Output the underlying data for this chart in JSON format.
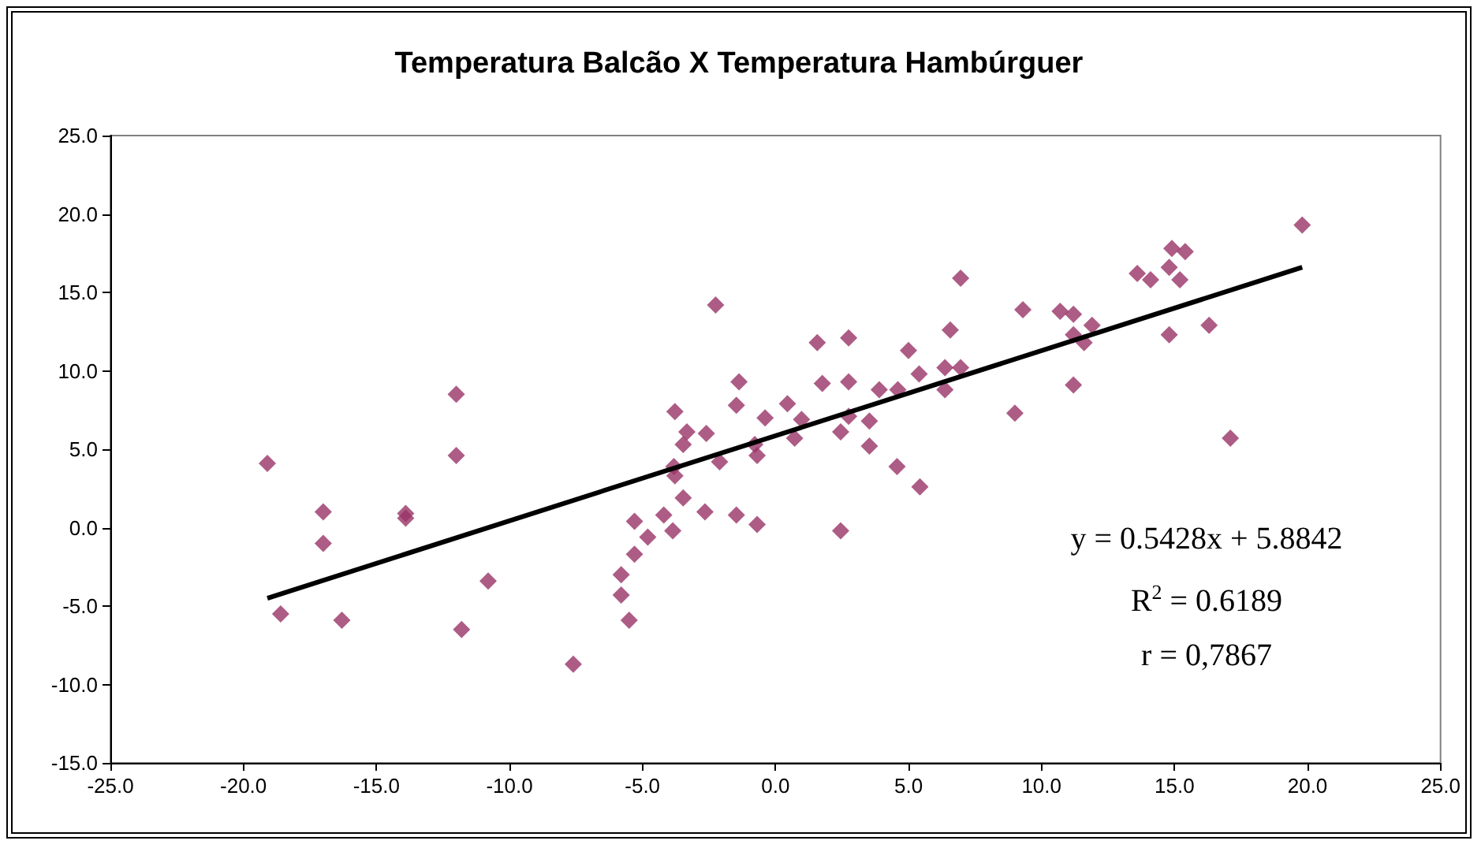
{
  "chart_data": {
    "type": "scatter",
    "title": "Temperatura Balcão X Temperatura Hambúrguer",
    "series": [
      {
        "color": "#993366",
        "marker": "diamond",
        "x": [
          -19.1,
          -18.6,
          -17.0,
          -17.0,
          -16.3,
          -13.9,
          -13.9,
          -12.0,
          -12.0,
          -11.8,
          -10.8,
          -7.6,
          -2.25,
          6.96,
          6.57,
          5.0,
          5.4,
          6.37,
          6.96,
          6.37,
          4.6,
          3.9,
          1.57,
          2.75,
          1.76,
          2.75,
          2.75,
          2.45,
          3.53,
          3.53,
          4.57,
          5.43,
          2.45,
          0.98,
          0.45,
          0.72,
          -0.39,
          -1.37,
          -1.47,
          -0.78,
          -0.69,
          -2.1,
          -2.6,
          -3.33,
          -3.47,
          -3.78,
          -3.82,
          -3.78,
          -3.47,
          -2.65,
          -1.47,
          -0.69,
          -4.2,
          -3.86,
          -4.8,
          -5.3,
          -5.3,
          -5.8,
          -5.8,
          -5.5,
          19.8,
          15.4,
          14.9,
          14.8,
          15.2,
          13.6,
          14.1,
          14.8,
          16.3,
          17.1,
          10.7,
          11.2,
          11.2,
          11.6,
          11.9,
          11.2,
          9.3,
          9.0
        ],
        "values": [
          4.1,
          -5.5,
          1.0,
          -1.0,
          -5.9,
          0.9,
          0.6,
          8.5,
          4.6,
          -6.5,
          -3.4,
          -8.7,
          14.2,
          15.9,
          12.6,
          11.3,
          9.8,
          10.2,
          10.2,
          8.8,
          8.8,
          8.8,
          11.8,
          12.1,
          9.2,
          9.3,
          7.1,
          6.1,
          6.8,
          5.2,
          3.9,
          2.6,
          -0.2,
          6.9,
          7.9,
          5.7,
          7.0,
          9.3,
          7.8,
          5.3,
          4.6,
          4.2,
          6.0,
          6.1,
          5.3,
          7.4,
          3.9,
          3.3,
          1.9,
          1.0,
          0.8,
          0.2,
          0.8,
          -0.2,
          -0.6,
          0.4,
          -1.7,
          -3.0,
          -4.3,
          -5.9,
          19.3,
          17.6,
          17.8,
          16.6,
          15.8,
          16.2,
          15.8,
          12.3,
          12.9,
          5.7,
          13.8,
          13.6,
          12.3,
          11.8,
          12.9,
          9.1,
          13.9,
          7.3
        ]
      },
      {
        "type": "line",
        "color": "#000000",
        "marker": "none",
        "line_style": "solid",
        "x": [
          -19.1,
          19.8
        ],
        "values": [
          -4.5,
          16.6
        ]
      }
    ],
    "xlim": [
      -25,
      25
    ],
    "xticks": [
      {
        "value": -25,
        "label": "-25.0"
      },
      {
        "value": -20,
        "label": "-20.0"
      },
      {
        "value": -15,
        "label": "-15.0"
      },
      {
        "value": -10,
        "label": "-10.0"
      },
      {
        "value": -5,
        "label": "-5.0"
      },
      {
        "value": 0,
        "label": "0.0"
      },
      {
        "value": 5,
        "label": "5.0"
      },
      {
        "value": 10,
        "label": "10.0"
      },
      {
        "value": 15,
        "label": "15.0"
      },
      {
        "value": 20,
        "label": "20.0"
      },
      {
        "value": 25,
        "label": "25.0"
      }
    ],
    "ylim": [
      -15,
      25
    ],
    "yticks": [
      {
        "value": -15,
        "label": "-15.0"
      },
      {
        "value": -10,
        "label": "-10.0"
      },
      {
        "value": -5,
        "label": "-5.0"
      },
      {
        "value": 0,
        "label": "0.0"
      },
      {
        "value": 5,
        "label": "5.0"
      },
      {
        "value": 10,
        "label": "10.0"
      },
      {
        "value": 15,
        "label": "15.0"
      },
      {
        "value": 20,
        "label": "20.0"
      },
      {
        "value": 25,
        "label": "25.0"
      }
    ],
    "annotations": [
      "y = 0.5428x + 5.8842",
      "R$^{2}$ = 0.6189",
      "r = 0,7867"
    ]
  }
}
